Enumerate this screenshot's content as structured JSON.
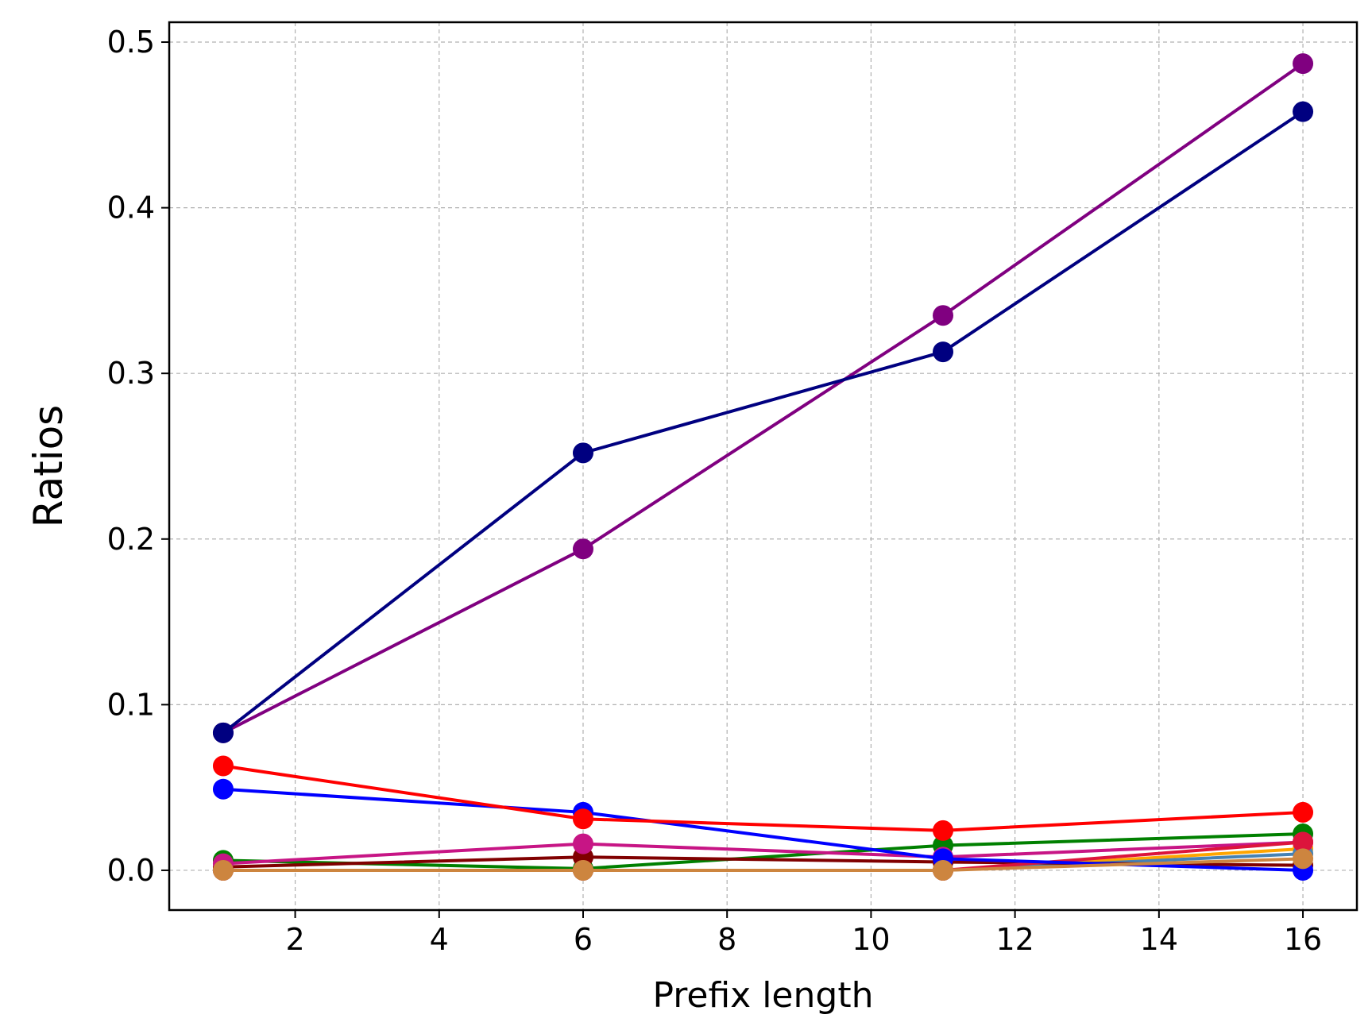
{
  "chart_data": {
    "type": "line",
    "title": "",
    "xlabel": "Prefix length",
    "ylabel": "Ratios",
    "xlim": [
      0.25,
      16.75
    ],
    "ylim": [
      -0.024,
      0.512
    ],
    "xticks": [
      2,
      4,
      6,
      8,
      10,
      12,
      14,
      16
    ],
    "xtick_labels": [
      "2",
      "4",
      "6",
      "8",
      "10",
      "12",
      "14",
      "16"
    ],
    "yticks": [
      0.0,
      0.1,
      0.2,
      0.3,
      0.4,
      0.5
    ],
    "ytick_labels": [
      "0.0",
      "0.1",
      "0.2",
      "0.3",
      "0.4",
      "0.5"
    ],
    "grid": true,
    "legend": "none",
    "x": [
      1,
      6,
      11,
      16
    ],
    "series": [
      {
        "color": "#008000",
        "values": [
          0.006,
          0.001,
          0.015,
          0.022
        ]
      },
      {
        "color": "#FFA500",
        "values": [
          0.0,
          0.0,
          0.0,
          0.013
        ]
      },
      {
        "color": "#4682B4",
        "values": [
          0.0,
          0.0,
          0.0,
          0.01
        ]
      },
      {
        "color": "#800000",
        "values": [
          0.002,
          0.008,
          0.005,
          0.003
        ]
      },
      {
        "color": "#C71585",
        "values": [
          0.004,
          0.016,
          0.008,
          0.017
        ]
      },
      {
        "color": "#DC143C",
        "values": [
          0.0,
          0.0,
          0.0,
          0.017
        ]
      },
      {
        "color": "#0000FF",
        "values": [
          0.049,
          0.035,
          0.007,
          0.0
        ]
      },
      {
        "color": "#FF0000",
        "values": [
          0.063,
          0.031,
          0.024,
          0.035
        ]
      },
      {
        "color": "#800080",
        "values": [
          0.083,
          0.194,
          0.335,
          0.487
        ]
      },
      {
        "color": "#000080",
        "values": [
          0.083,
          0.252,
          0.313,
          0.458
        ]
      },
      {
        "color": "#CD853F",
        "values": [
          0.0,
          0.0,
          0.0,
          0.007
        ]
      }
    ]
  }
}
